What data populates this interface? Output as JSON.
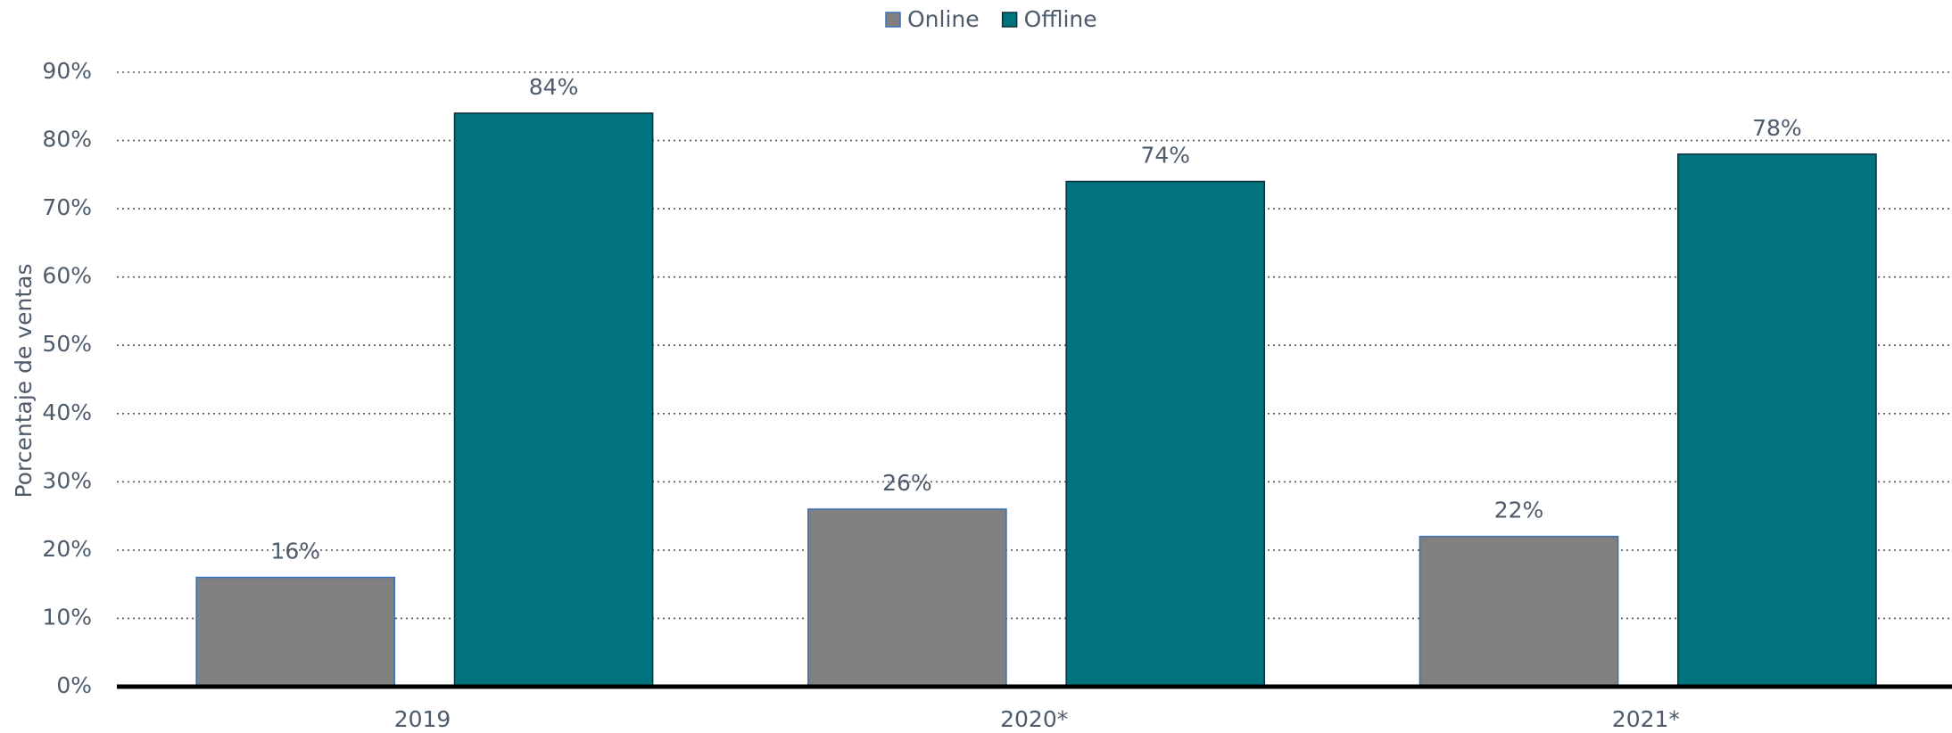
{
  "chart_data": {
    "type": "bar",
    "y_label": "Porcentaje de ventas",
    "categories": [
      "2019",
      "2020*",
      "2021*"
    ],
    "series": [
      {
        "name": "Online",
        "color": "#808080",
        "values": [
          16,
          26,
          22
        ],
        "value_labels": [
          "16%",
          "26%",
          "22%"
        ]
      },
      {
        "name": "Offline",
        "color": "#00737f",
        "values": [
          84,
          74,
          78
        ],
        "value_labels": [
          "84%",
          "74%",
          "78%"
        ]
      }
    ],
    "ylim": [
      0,
      90
    ],
    "yticks": [
      {
        "value": 0,
        "label": "0%"
      },
      {
        "value": 10,
        "label": "10%"
      },
      {
        "value": 20,
        "label": "20%"
      },
      {
        "value": 30,
        "label": "30%"
      },
      {
        "value": 40,
        "label": "40%"
      },
      {
        "value": 50,
        "label": "50%"
      },
      {
        "value": 60,
        "label": "60%"
      },
      {
        "value": 70,
        "label": "70%"
      },
      {
        "value": 80,
        "label": "80%"
      },
      {
        "value": 90,
        "label": "90%"
      }
    ],
    "grid": true,
    "legend": "top"
  }
}
